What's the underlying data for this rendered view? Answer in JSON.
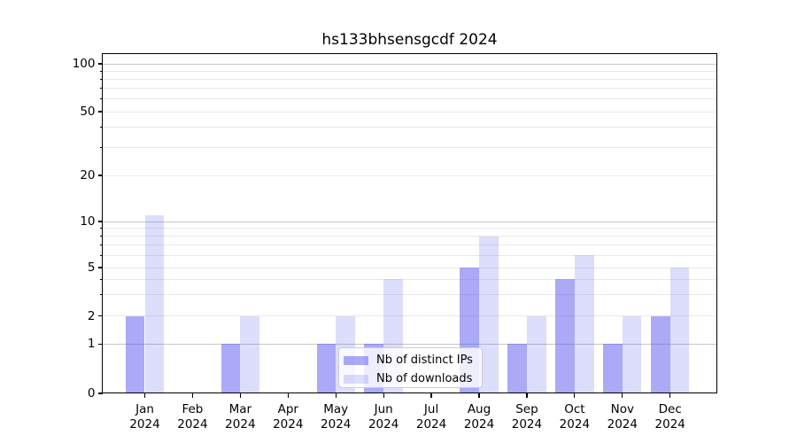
{
  "title": "hs133bhsensgcdf 2024",
  "legend": {
    "items": [
      {
        "label": "Nb of distinct IPs",
        "key": "distinct-ips"
      },
      {
        "label": "Nb of downloads",
        "key": "downloads"
      }
    ]
  },
  "x_axis": {
    "months": [
      "Jan",
      "Feb",
      "Mar",
      "Apr",
      "May",
      "Jun",
      "Jul",
      "Aug",
      "Sep",
      "Oct",
      "Nov",
      "Dec"
    ],
    "year": "2024"
  },
  "chart_data": {
    "type": "bar",
    "title": "hs133bhsensgcdf 2024",
    "categories": [
      "Jan 2024",
      "Feb 2024",
      "Mar 2024",
      "Apr 2024",
      "May 2024",
      "Jun 2024",
      "Jul 2024",
      "Aug 2024",
      "Sep 2024",
      "Oct 2024",
      "Nov 2024",
      "Dec 2024"
    ],
    "series": [
      {
        "name": "Nb of distinct IPs",
        "key": "distinct-ips",
        "color": "rgba(85,85,240,0.5)",
        "solid_color": "#a9a9fa",
        "values": [
          2,
          0,
          1,
          0,
          1,
          1,
          0,
          5,
          1,
          4,
          1,
          2
        ]
      },
      {
        "name": "Nb of downloads",
        "key": "downloads",
        "color": "rgba(85,85,240,0.2)",
        "solid_color": "#dcdcfa",
        "values": [
          11,
          0,
          2,
          0,
          2,
          4,
          0,
          8,
          2,
          6,
          2,
          5
        ]
      }
    ],
    "y_ticks": [
      0,
      1,
      2,
      5,
      10,
      20,
      50,
      100
    ],
    "y_major_gridlines": [
      1,
      10,
      100
    ],
    "y_minor_gridlines": [
      2,
      3,
      4,
      5,
      6,
      7,
      8,
      9,
      20,
      30,
      40,
      50,
      60,
      70,
      80,
      90
    ],
    "y_scale": "log-like with 0 baseline",
    "ylim": [
      0,
      115
    ],
    "grid": true,
    "legend_position": "inside lower center"
  },
  "colors": {
    "bar_distinct_ips": "#a9a9fa",
    "bar_downloads": "#dcdcfa",
    "grid_major": "#c6c6c6",
    "grid_minor": "#e9e9e9",
    "spine": "#000000",
    "background": "#ffffff",
    "legend_border": "#cccccc"
  }
}
